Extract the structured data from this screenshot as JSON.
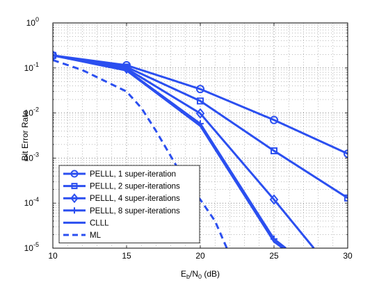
{
  "chart_data": {
    "type": "line",
    "xlabel": "E_b/N_0 (dB)",
    "xlabel_parts": {
      "main": "E",
      "sub1": "b",
      "mid": "/N",
      "sub2": "0",
      "tail": " (dB)"
    },
    "ylabel": "Bit Error Rate",
    "xlim": [
      10,
      30
    ],
    "ylim": [
      1e-05,
      1
    ],
    "yscale": "log",
    "grid": true,
    "legend_position": "bottom-left",
    "x_ticks": [
      "10",
      "15",
      "20",
      "25",
      "30"
    ],
    "y_ticks": [
      {
        "base": "10",
        "exp": "0"
      },
      {
        "base": "10",
        "exp": "-1"
      },
      {
        "base": "10",
        "exp": "-2"
      },
      {
        "base": "10",
        "exp": "-3"
      },
      {
        "base": "10",
        "exp": "-4"
      },
      {
        "base": "10",
        "exp": "-5"
      }
    ],
    "line_color": "#2b4ff0",
    "series": [
      {
        "name": "PELLL, 1 super-iteration",
        "marker": "circle",
        "style": "solid",
        "x": [
          10,
          15,
          20,
          25,
          30
        ],
        "y": [
          0.19,
          0.115,
          0.034,
          0.007,
          0.00125
        ]
      },
      {
        "name": "PELLL, 2 super-iterations",
        "marker": "square",
        "style": "solid",
        "x": [
          10,
          15,
          20,
          25,
          30
        ],
        "y": [
          0.19,
          0.105,
          0.0185,
          0.00145,
          0.00013
        ]
      },
      {
        "name": "PELLL, 4 super-iterations",
        "marker": "diamond",
        "style": "solid",
        "x": [
          10,
          15,
          20,
          25,
          27.7
        ],
        "y": [
          0.19,
          0.097,
          0.0098,
          0.00012,
          1e-05
        ]
      },
      {
        "name": "PELLL, 8 super-iterations",
        "marker": "plus",
        "style": "solid",
        "x": [
          10,
          15,
          20,
          25,
          25.8
        ],
        "y": [
          0.19,
          0.09,
          0.0058,
          1.6e-05,
          1e-05
        ]
      },
      {
        "name": "CLLL",
        "marker": "none",
        "style": "solid",
        "x": [
          10,
          15,
          20,
          25,
          25.6
        ],
        "y": [
          0.19,
          0.088,
          0.0052,
          1.4e-05,
          1e-05
        ]
      },
      {
        "name": "ML",
        "marker": "none",
        "style": "dashed",
        "x": [
          10,
          12,
          15,
          16,
          17,
          18,
          19,
          20,
          21,
          21.8
        ],
        "y": [
          0.15,
          0.09,
          0.03,
          0.013,
          0.004,
          0.0011,
          0.0003,
          0.00012,
          4e-05,
          1e-05
        ]
      }
    ]
  }
}
